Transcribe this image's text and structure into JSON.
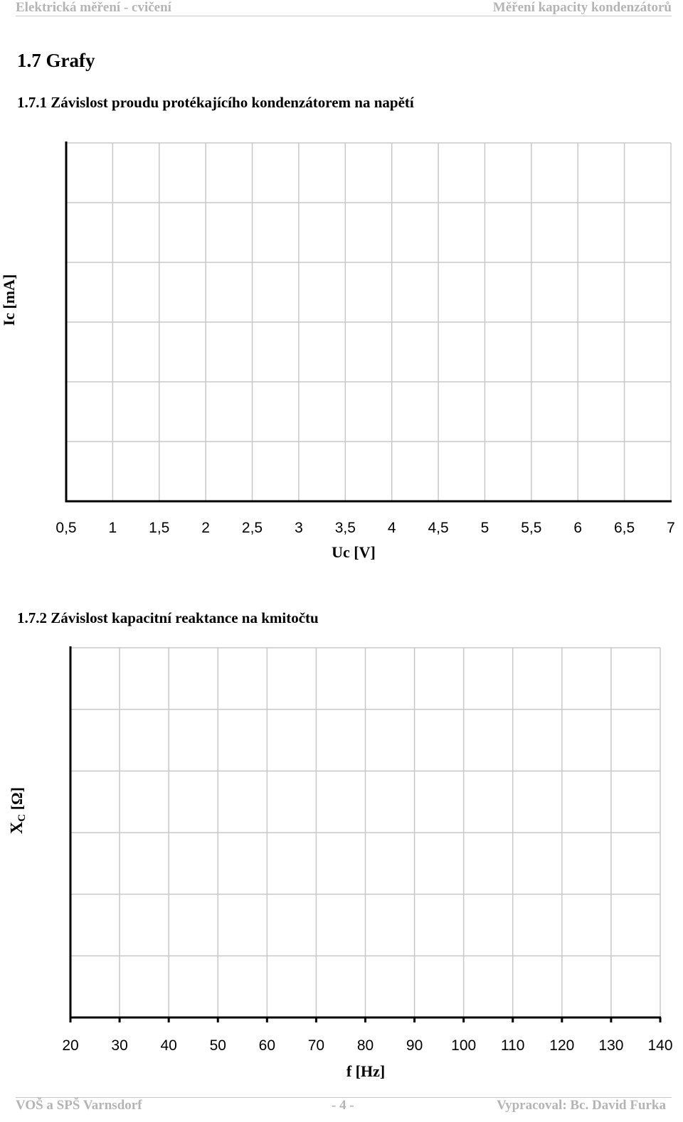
{
  "header": {
    "left": "Elektrická měření - cvičení",
    "right": "Měření kapacity kondenzátorů"
  },
  "section_title": "1.7  Grafy",
  "charts": [
    {
      "heading": "1.7.1  Závislost proudu protékajícího kondenzátorem na napětí",
      "ylabel": "Ic [mA]",
      "xlabel": "Uc [V]"
    },
    {
      "heading": "1.7.2  Závislost kapacitní reaktance na kmitočtu",
      "ylabel": "XC [Ω]",
      "ylabel_main": "X",
      "ylabel_sub": "C",
      "ylabel_rest": " [Ω]",
      "xlabel": "f [Hz]"
    }
  ],
  "chart_data": [
    {
      "type": "line",
      "xlabel": "Uc [V]",
      "ylabel": "Ic [mA]",
      "x_ticks": [
        "0,5",
        "1",
        "1,5",
        "2",
        "2,5",
        "3",
        "3,5",
        "4",
        "4,5",
        "5",
        "5,5",
        "6",
        "6,5",
        "7"
      ],
      "xlim": [
        0.5,
        7
      ],
      "y_divisions": 6,
      "grid": true,
      "series": []
    },
    {
      "type": "line",
      "xlabel": "f [Hz]",
      "ylabel": "XC [Ω]",
      "x_ticks": [
        "20",
        "30",
        "40",
        "50",
        "60",
        "70",
        "80",
        "90",
        "100",
        "110",
        "120",
        "130",
        "140"
      ],
      "xlim": [
        20,
        140
      ],
      "y_divisions": 6,
      "grid": true,
      "series": []
    }
  ],
  "footer": {
    "left": "VOŠ a SPŠ Varnsdorf",
    "center": "- 4 -",
    "right": "Vypracoval: Bc. David Furka"
  }
}
